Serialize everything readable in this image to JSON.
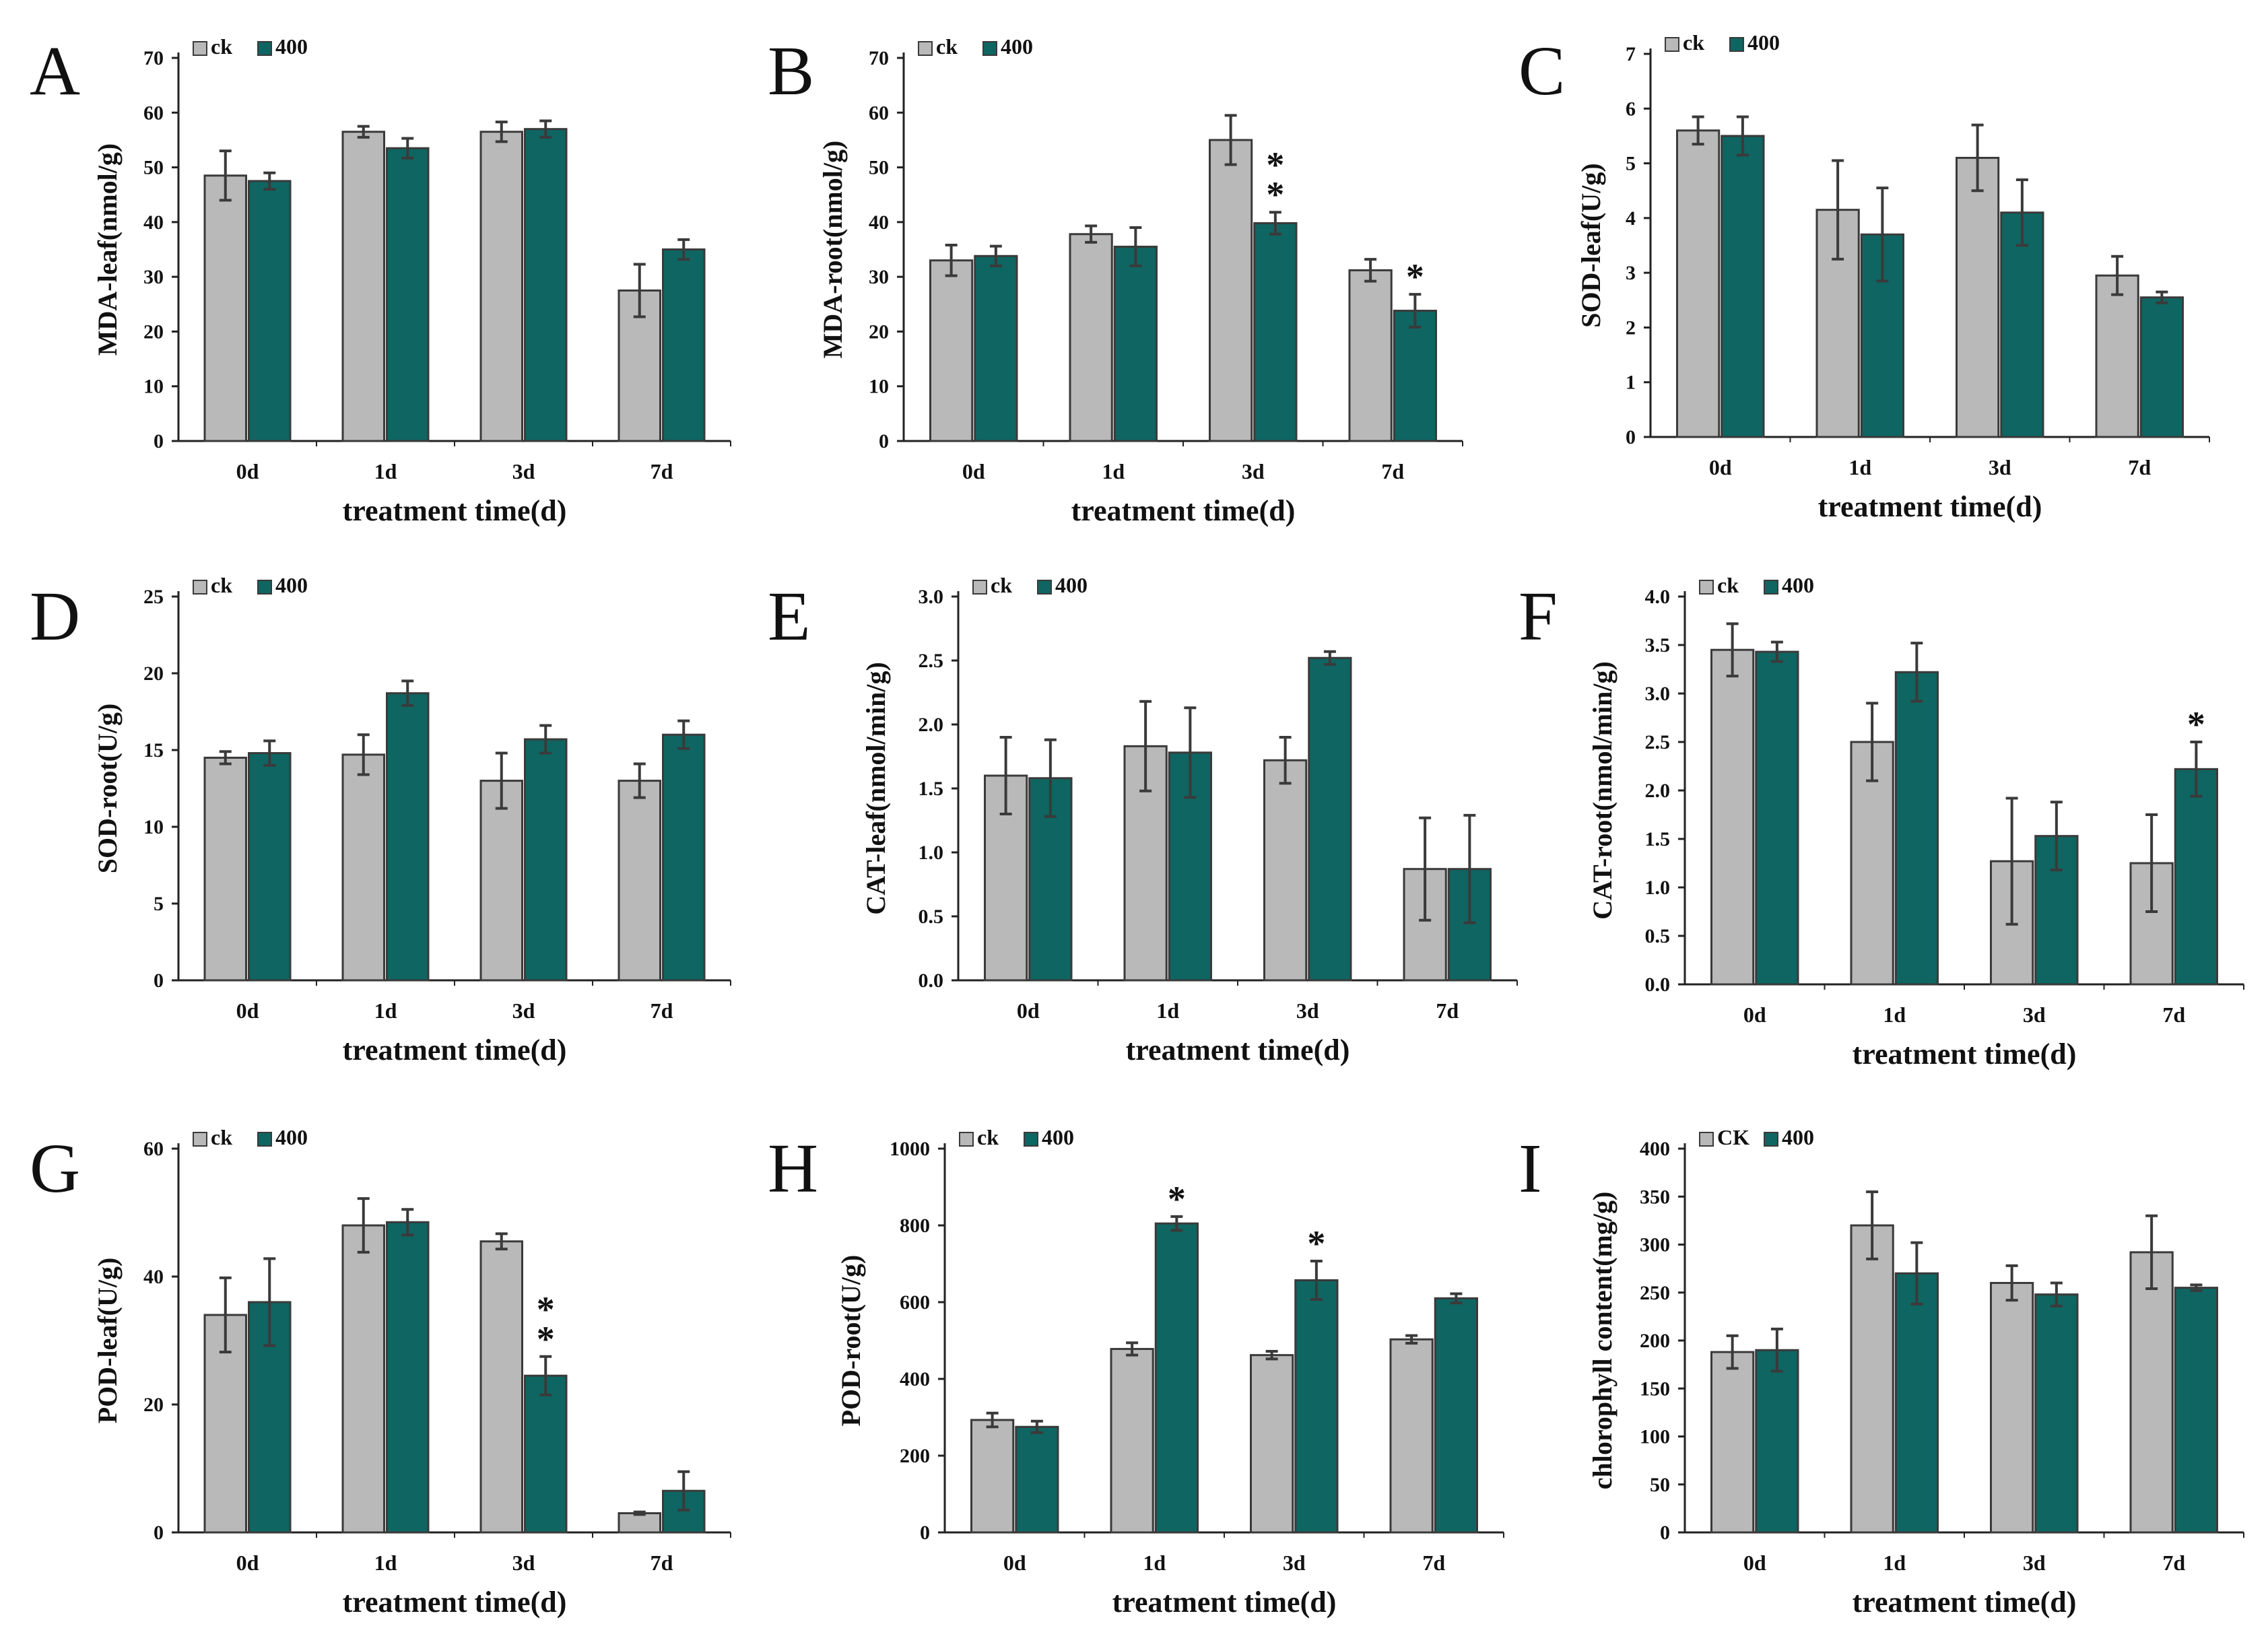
{
  "colors": {
    "ck": "#b9b9b9",
    "treat": "#0f6562",
    "outline": "#3a3a3a",
    "error": "#3a3a3a",
    "axis": "#222222"
  },
  "chart_data": [
    {
      "panel": "A",
      "type": "bar",
      "ylabel": "MDA-leaf(nmol/g)",
      "xlabel": "treatment time(d)",
      "categories": [
        "0d",
        "1d",
        "3d",
        "7d"
      ],
      "ylim": [
        0,
        70
      ],
      "yticks": [
        0,
        10,
        20,
        30,
        40,
        50,
        60,
        70
      ],
      "legend": [
        "ck",
        "400"
      ],
      "series": [
        {
          "name": "ck",
          "values": [
            48.5,
            56.5,
            56.5,
            27.5
          ],
          "errors": [
            4.5,
            1.0,
            1.8,
            4.8
          ]
        },
        {
          "name": "400",
          "values": [
            47.5,
            53.5,
            57.0,
            35.0
          ],
          "errors": [
            1.5,
            1.8,
            1.5,
            1.8
          ]
        }
      ],
      "significance": []
    },
    {
      "panel": "B",
      "type": "bar",
      "ylabel": "MDA-root(nmol/g)",
      "xlabel": "treatment time(d)",
      "categories": [
        "0d",
        "1d",
        "3d",
        "7d"
      ],
      "ylim": [
        0,
        70
      ],
      "yticks": [
        0,
        10,
        20,
        30,
        40,
        50,
        60,
        70
      ],
      "legend": [
        "ck",
        "400"
      ],
      "series": [
        {
          "name": "ck",
          "values": [
            33.0,
            37.8,
            55.0,
            31.2
          ],
          "errors": [
            2.8,
            1.5,
            4.5,
            2.0
          ]
        },
        {
          "name": "400",
          "values": [
            33.8,
            35.5,
            39.8,
            23.8
          ],
          "errors": [
            1.8,
            3.5,
            2.0,
            3.0
          ]
        }
      ],
      "significance": [
        {
          "category": "3d",
          "series": "400",
          "mark": "**"
        },
        {
          "category": "7d",
          "series": "400",
          "mark": "*"
        }
      ]
    },
    {
      "panel": "C",
      "type": "bar",
      "ylabel": "SOD-leaf(U/g)",
      "xlabel": "treatment time(d)",
      "categories": [
        "0d",
        "1d",
        "3d",
        "7d"
      ],
      "ylim": [
        0,
        7
      ],
      "yticks": [
        0,
        1,
        2,
        3,
        4,
        5,
        6,
        7
      ],
      "legend": [
        "ck",
        "400"
      ],
      "series": [
        {
          "name": "ck",
          "values": [
            5.6,
            4.15,
            5.1,
            2.95
          ],
          "errors": [
            0.25,
            0.9,
            0.6,
            0.35
          ]
        },
        {
          "name": "400",
          "values": [
            5.5,
            3.7,
            4.1,
            2.55
          ],
          "errors": [
            0.35,
            0.85,
            0.6,
            0.1
          ]
        }
      ],
      "significance": []
    },
    {
      "panel": "D",
      "type": "bar",
      "ylabel": "SOD-root(U/g)",
      "xlabel": "treatment time(d)",
      "categories": [
        "0d",
        "1d",
        "3d",
        "7d"
      ],
      "ylim": [
        0,
        25
      ],
      "yticks": [
        0,
        5,
        10,
        15,
        20,
        25
      ],
      "legend": [
        "ck",
        "400"
      ],
      "series": [
        {
          "name": "ck",
          "values": [
            14.5,
            14.7,
            13.0,
            13.0
          ],
          "errors": [
            0.4,
            1.3,
            1.8,
            1.1
          ]
        },
        {
          "name": "400",
          "values": [
            14.8,
            18.7,
            15.7,
            16.0
          ],
          "errors": [
            0.8,
            0.8,
            0.9,
            0.9
          ]
        }
      ],
      "significance": []
    },
    {
      "panel": "E",
      "type": "bar",
      "ylabel": "CAT-leaf(nmol/min/g)",
      "xlabel": "treatment time(d)",
      "categories": [
        "0d",
        "1d",
        "3d",
        "7d"
      ],
      "ylim": [
        0,
        3.0
      ],
      "yticks": [
        0.0,
        0.5,
        1.0,
        1.5,
        2.0,
        2.5,
        3.0
      ],
      "ytick_labels": [
        "0.0",
        "0.5",
        "1.0",
        "1.5",
        "2.0",
        "2.5",
        "3.0"
      ],
      "legend": [
        "ck",
        "400"
      ],
      "series": [
        {
          "name": "ck",
          "values": [
            1.6,
            1.83,
            1.72,
            0.87
          ],
          "errors": [
            0.3,
            0.35,
            0.18,
            0.4
          ]
        },
        {
          "name": "400",
          "values": [
            1.58,
            1.78,
            2.52,
            0.87
          ],
          "errors": [
            0.3,
            0.35,
            0.05,
            0.42
          ]
        }
      ],
      "significance": []
    },
    {
      "panel": "F",
      "type": "bar",
      "ylabel": "CAT-root(nmol/min/g)",
      "xlabel": "treatment time(d)",
      "categories": [
        "0d",
        "1d",
        "3d",
        "7d"
      ],
      "ylim": [
        0,
        4.0
      ],
      "yticks": [
        0.0,
        0.5,
        1.0,
        1.5,
        2.0,
        2.5,
        3.0,
        3.5,
        4.0
      ],
      "ytick_labels": [
        "0.0",
        "0.5",
        "1.0",
        "1.5",
        "2.0",
        "2.5",
        "3.0",
        "3.5",
        "4.0"
      ],
      "legend": [
        "ck",
        "400"
      ],
      "series": [
        {
          "name": "ck",
          "values": [
            3.45,
            2.5,
            1.27,
            1.25
          ],
          "errors": [
            0.27,
            0.4,
            0.65,
            0.5
          ]
        },
        {
          "name": "400",
          "values": [
            3.43,
            3.22,
            1.53,
            2.22
          ],
          "errors": [
            0.1,
            0.3,
            0.35,
            0.28
          ]
        }
      ],
      "significance": [
        {
          "category": "7d",
          "series": "400",
          "mark": "*"
        }
      ]
    },
    {
      "panel": "G",
      "type": "bar",
      "ylabel": "POD-leaf(U/g)",
      "xlabel": "treatment time(d)",
      "categories": [
        "0d",
        "1d",
        "3d",
        "7d"
      ],
      "ylim": [
        0,
        60
      ],
      "yticks": [
        0,
        20,
        40,
        60
      ],
      "legend": [
        "ck",
        "400"
      ],
      "series": [
        {
          "name": "ck",
          "values": [
            34.0,
            48.0,
            45.5,
            3.0
          ],
          "errors": [
            5.8,
            4.2,
            1.2,
            0.2
          ]
        },
        {
          "name": "400",
          "values": [
            36.0,
            48.5,
            24.5,
            6.5
          ],
          "errors": [
            6.8,
            2.0,
            3.0,
            3.0
          ]
        }
      ],
      "significance": [
        {
          "category": "3d",
          "series": "400",
          "mark": "**"
        }
      ]
    },
    {
      "panel": "H",
      "type": "bar",
      "ylabel": "POD-root(U/g)",
      "xlabel": "treatment time(d)",
      "categories": [
        "0d",
        "1d",
        "3d",
        "7d"
      ],
      "ylim": [
        0,
        1000
      ],
      "yticks": [
        0,
        200,
        400,
        600,
        800,
        1000
      ],
      "legend": [
        "ck",
        "400"
      ],
      "series": [
        {
          "name": "ck",
          "values": [
            293,
            478,
            462,
            503
          ],
          "errors": [
            18,
            16,
            10,
            10
          ]
        },
        {
          "name": "400",
          "values": [
            275,
            805,
            657,
            610
          ],
          "errors": [
            15,
            18,
            50,
            12
          ]
        }
      ],
      "significance": [
        {
          "category": "1d",
          "series": "400",
          "mark": "*"
        },
        {
          "category": "3d",
          "series": "400",
          "mark": "*"
        }
      ]
    },
    {
      "panel": "I",
      "type": "bar",
      "ylabel": "chlorophyll content(mg/g)",
      "xlabel": "treatment time(d)",
      "categories": [
        "0d",
        "1d",
        "3d",
        "7d"
      ],
      "ylim": [
        0,
        400
      ],
      "yticks": [
        0,
        50,
        100,
        150,
        200,
        250,
        300,
        350,
        400
      ],
      "legend": [
        "CK",
        "400"
      ],
      "series": [
        {
          "name": "CK",
          "values": [
            188,
            320,
            260,
            292
          ],
          "errors": [
            17,
            35,
            18,
            38
          ]
        },
        {
          "name": "400",
          "values": [
            190,
            270,
            248,
            255
          ],
          "errors": [
            22,
            32,
            12,
            3
          ]
        }
      ],
      "significance": []
    }
  ]
}
